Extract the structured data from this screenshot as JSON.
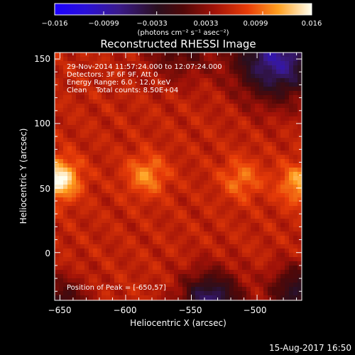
{
  "chart_data": {
    "type": "heatmap",
    "title": "Reconstructed RHESSI Image",
    "xlabel": "Heliocentric X (arcsec)",
    "ylabel": "Heliocentric Y (arcsec)",
    "xlim": [
      -654,
      -466
    ],
    "ylim": [
      -37,
      155
    ],
    "xticks": [
      -650,
      -600,
      -550,
      -500
    ],
    "xtick_labels": [
      "−650",
      "−600",
      "−550",
      "−500"
    ],
    "yticks": [
      0,
      50,
      100,
      150
    ],
    "ytick_labels": [
      "0",
      "50",
      "100",
      "150"
    ],
    "colorbar": {
      "range": [
        -0.016,
        0.016
      ],
      "ticks": [
        -0.016,
        -0.0099,
        -0.0033,
        0.0033,
        0.0099,
        0.016
      ],
      "tick_labels": [
        "−0.016",
        "−0.0099",
        "−0.0033",
        "0.0033",
        "0.0099",
        "0.016"
      ],
      "units_label": "(photons cm⁻² s⁻¹ asec⁻²)"
    },
    "annotations": [
      "29-Nov-2014 11:57:24.000 to 12:07:24.000",
      "Detectors: 3F 6F 9F, Att 0",
      "Energy Range: 6.0 - 12.0 keV",
      "Clean    Total counts: 8.50E+04"
    ],
    "peak_label": "Position of Peak = [-650,57]",
    "peak": [
      -650,
      57
    ],
    "sources": [
      {
        "x": -651,
        "y": 57,
        "value": 0.016
      },
      {
        "x": -584,
        "y": 60,
        "value": 0.011
      },
      {
        "x": -512,
        "y": 57,
        "value": 0.01
      },
      {
        "x": -468,
        "y": 53,
        "value": 0.012
      }
    ]
  },
  "footer_timestamp": "15-Aug-2017 16:50",
  "colors": {
    "background": "#000000",
    "text": "#ffffff",
    "colormap": "hot"
  }
}
